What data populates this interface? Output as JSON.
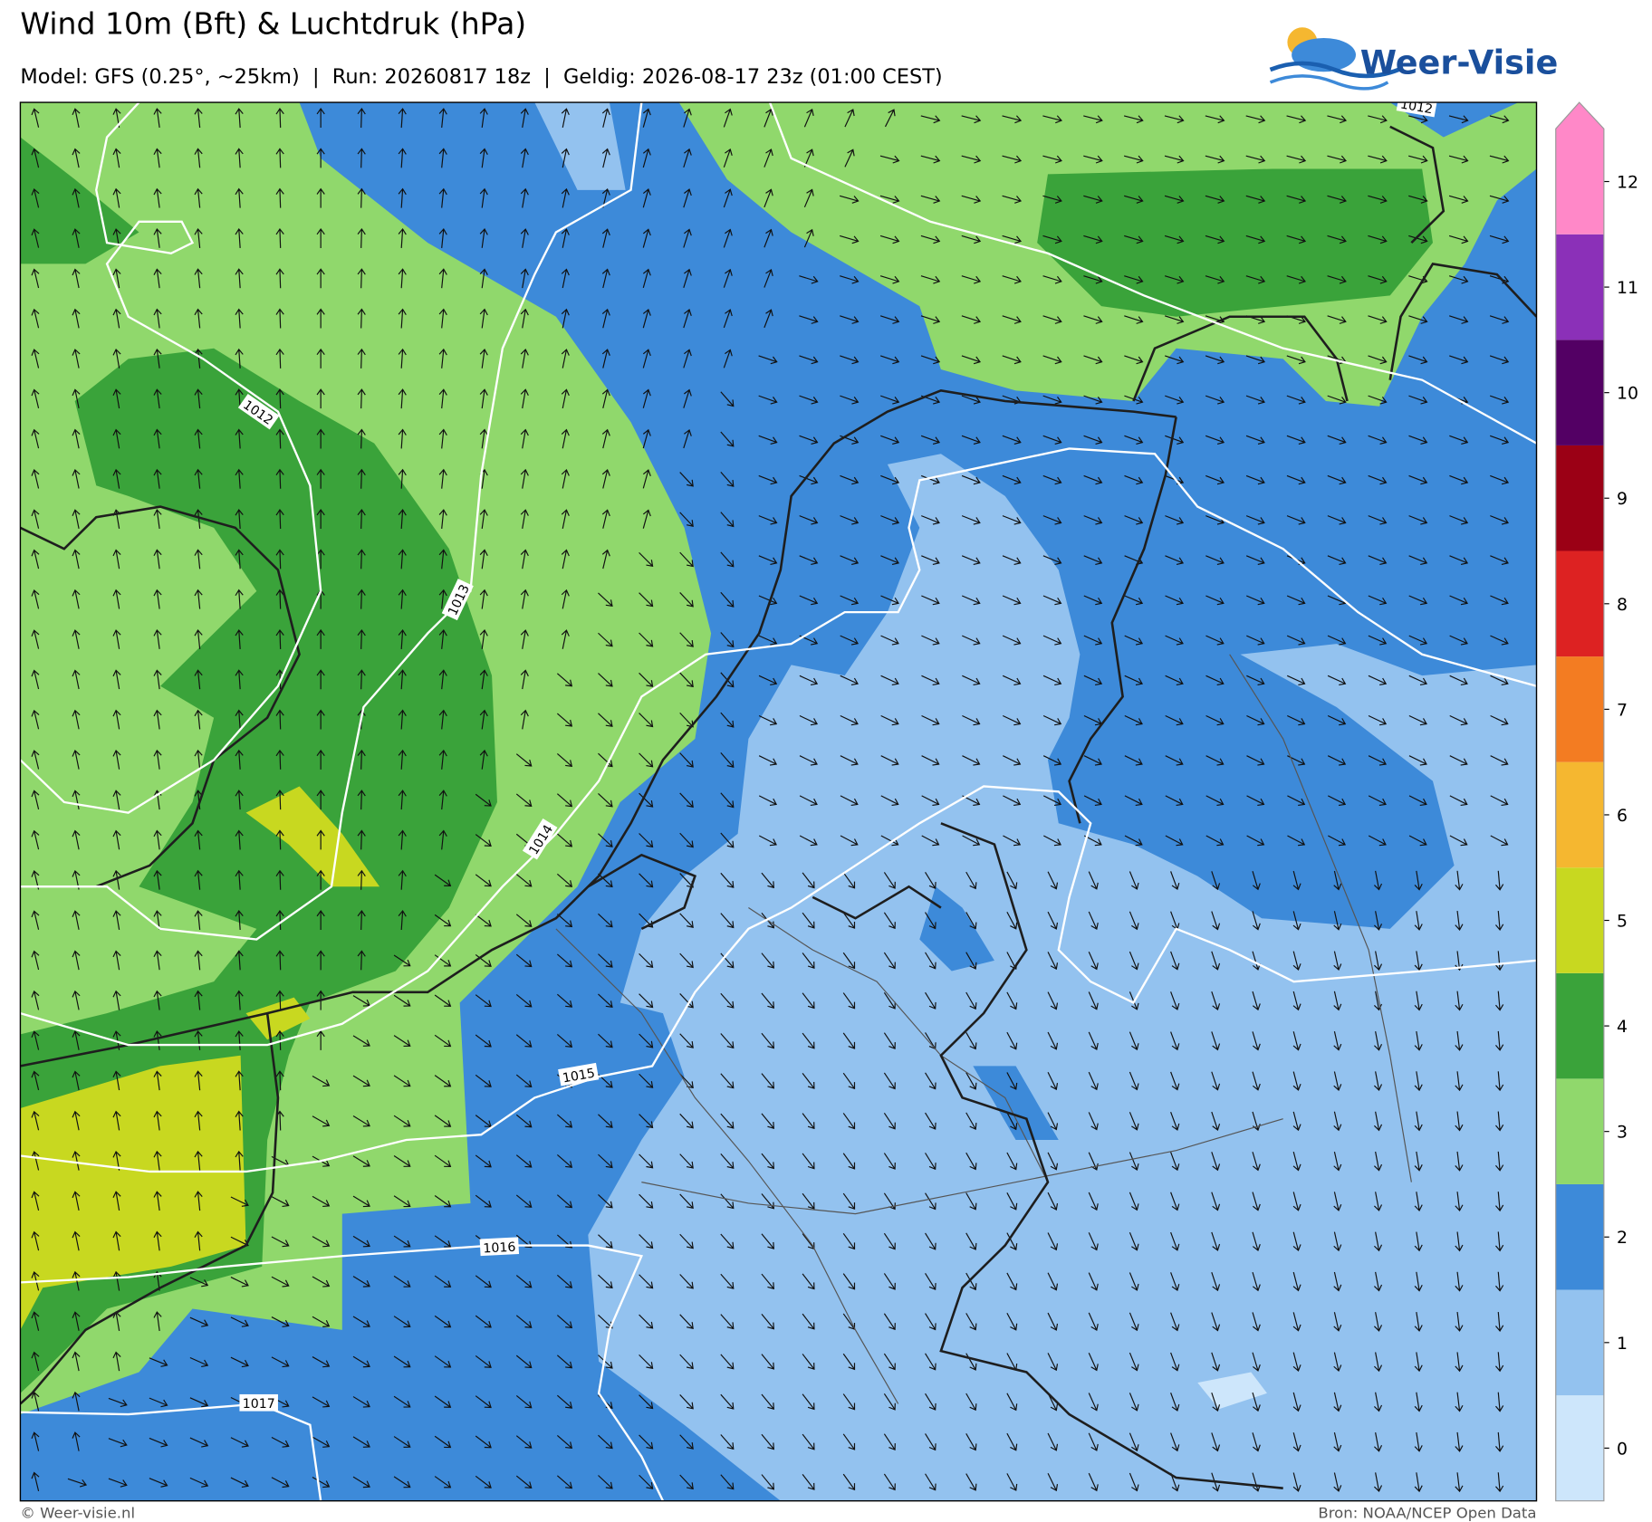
{
  "header": {
    "title": "Wind 10m (Bft) & Luchtdruk (hPa)",
    "subtitle": "Model: GFS (0.25°, ~25km)  |  Run: 20260817 18z  |  Geldig: 2026-08-17 23z (01:00 CEST)",
    "logo": "Weer-Visie"
  },
  "isobars": [
    1012,
    1013,
    1014,
    1015,
    1016,
    1017,
    1012
  ],
  "legend": {
    "ticks": [
      0,
      1,
      2,
      3,
      4,
      5,
      6,
      7,
      8,
      9,
      10,
      11,
      12
    ],
    "colors": [
      "#cde6fb",
      "#93c2ef",
      "#3d8ad9",
      "#90d86c",
      "#3aa33a",
      "#c8d820",
      "#f5b730",
      "#f37c22",
      "#dd2222",
      "#9b0015",
      "#530064",
      "#8b30b8",
      "#ff88c8"
    ]
  },
  "footer": {
    "left": "© Weer-visie.nl",
    "right": "Bron: NOAA/NCEP Open Data"
  }
}
